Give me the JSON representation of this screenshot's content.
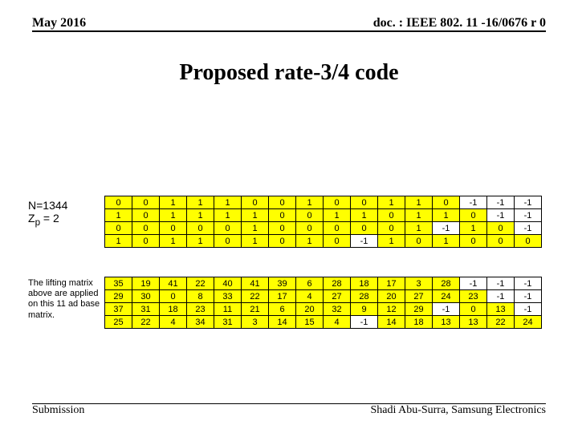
{
  "header": {
    "date": "May 2016",
    "doc": "doc. : IEEE 802. 11 -16/0676 r 0"
  },
  "title": "Proposed rate-3/4 code",
  "label1_line1": "N=1344",
  "label1_line2_pre": "Z",
  "label1_line2_sub": "p",
  "label1_line2_post": " = 2",
  "label2": "The lifting matrix above are applied on this 11 ad base matrix.",
  "yellow": "#ffff00",
  "matrix1": {
    "rows": [
      [
        "0",
        "0",
        "1",
        "1",
        "1",
        "0",
        "0",
        "1",
        "0",
        "0",
        "1",
        "1",
        "0",
        "-1",
        "-1",
        "-1"
      ],
      [
        "1",
        "0",
        "1",
        "1",
        "1",
        "1",
        "0",
        "0",
        "1",
        "1",
        "0",
        "1",
        "1",
        "0",
        "-1",
        "-1"
      ],
      [
        "0",
        "0",
        "0",
        "0",
        "0",
        "1",
        "0",
        "0",
        "0",
        "0",
        "0",
        "1",
        "-1",
        "1",
        "0",
        "-1"
      ],
      [
        "1",
        "0",
        "1",
        "1",
        "0",
        "1",
        "0",
        "1",
        "0",
        "-1",
        "1",
        "0",
        "1",
        "0",
        "0",
        "0"
      ]
    ]
  },
  "matrix2": {
    "rows": [
      [
        "35",
        "19",
        "41",
        "22",
        "40",
        "41",
        "39",
        "6",
        "28",
        "18",
        "17",
        "3",
        "28",
        "-1",
        "-1",
        "-1"
      ],
      [
        "29",
        "30",
        "0",
        "8",
        "33",
        "22",
        "17",
        "4",
        "27",
        "28",
        "20",
        "27",
        "24",
        "23",
        "-1",
        "-1"
      ],
      [
        "37",
        "31",
        "18",
        "23",
        "11",
        "21",
        "6",
        "20",
        "32",
        "9",
        "12",
        "29",
        "-1",
        "0",
        "13",
        "-1"
      ],
      [
        "25",
        "22",
        "4",
        "34",
        "31",
        "3",
        "14",
        "15",
        "4",
        "-1",
        "14",
        "18",
        "13",
        "13",
        "22",
        "24"
      ]
    ]
  },
  "footer": {
    "left": "Submission",
    "right": "Shadi Abu-Surra, Samsung Electronics"
  }
}
